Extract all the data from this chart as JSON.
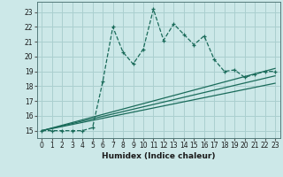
{
  "xlabel": "Humidex (Indice chaleur)",
  "background_color": "#cce8e8",
  "grid_color": "#aacfcf",
  "line_color": "#1a6b5a",
  "xlim": [
    -0.5,
    23.5
  ],
  "ylim": [
    14.5,
    23.7
  ],
  "yticks": [
    15,
    16,
    17,
    18,
    19,
    20,
    21,
    22,
    23
  ],
  "xticks": [
    0,
    1,
    2,
    3,
    4,
    5,
    6,
    7,
    8,
    9,
    10,
    11,
    12,
    13,
    14,
    15,
    16,
    17,
    18,
    19,
    20,
    21,
    22,
    23
  ],
  "main_x": [
    0,
    1,
    2,
    3,
    4,
    5,
    6,
    7,
    8,
    9,
    10,
    11,
    12,
    13,
    14,
    15,
    16,
    17,
    18,
    19,
    20,
    21,
    22,
    23
  ],
  "main_y": [
    15.0,
    15.0,
    15.0,
    15.0,
    15.0,
    15.2,
    18.3,
    22.0,
    20.3,
    19.5,
    20.5,
    23.2,
    21.1,
    22.2,
    21.5,
    20.8,
    21.4,
    19.8,
    19.0,
    19.1,
    18.6,
    18.8,
    19.0,
    19.0
  ],
  "line1_x": [
    0,
    23
  ],
  "line1_y": [
    15.0,
    19.2
  ],
  "line2_x": [
    0,
    23
  ],
  "line2_y": [
    15.0,
    18.7
  ],
  "line3_x": [
    0,
    23
  ],
  "line3_y": [
    15.0,
    18.2
  ]
}
